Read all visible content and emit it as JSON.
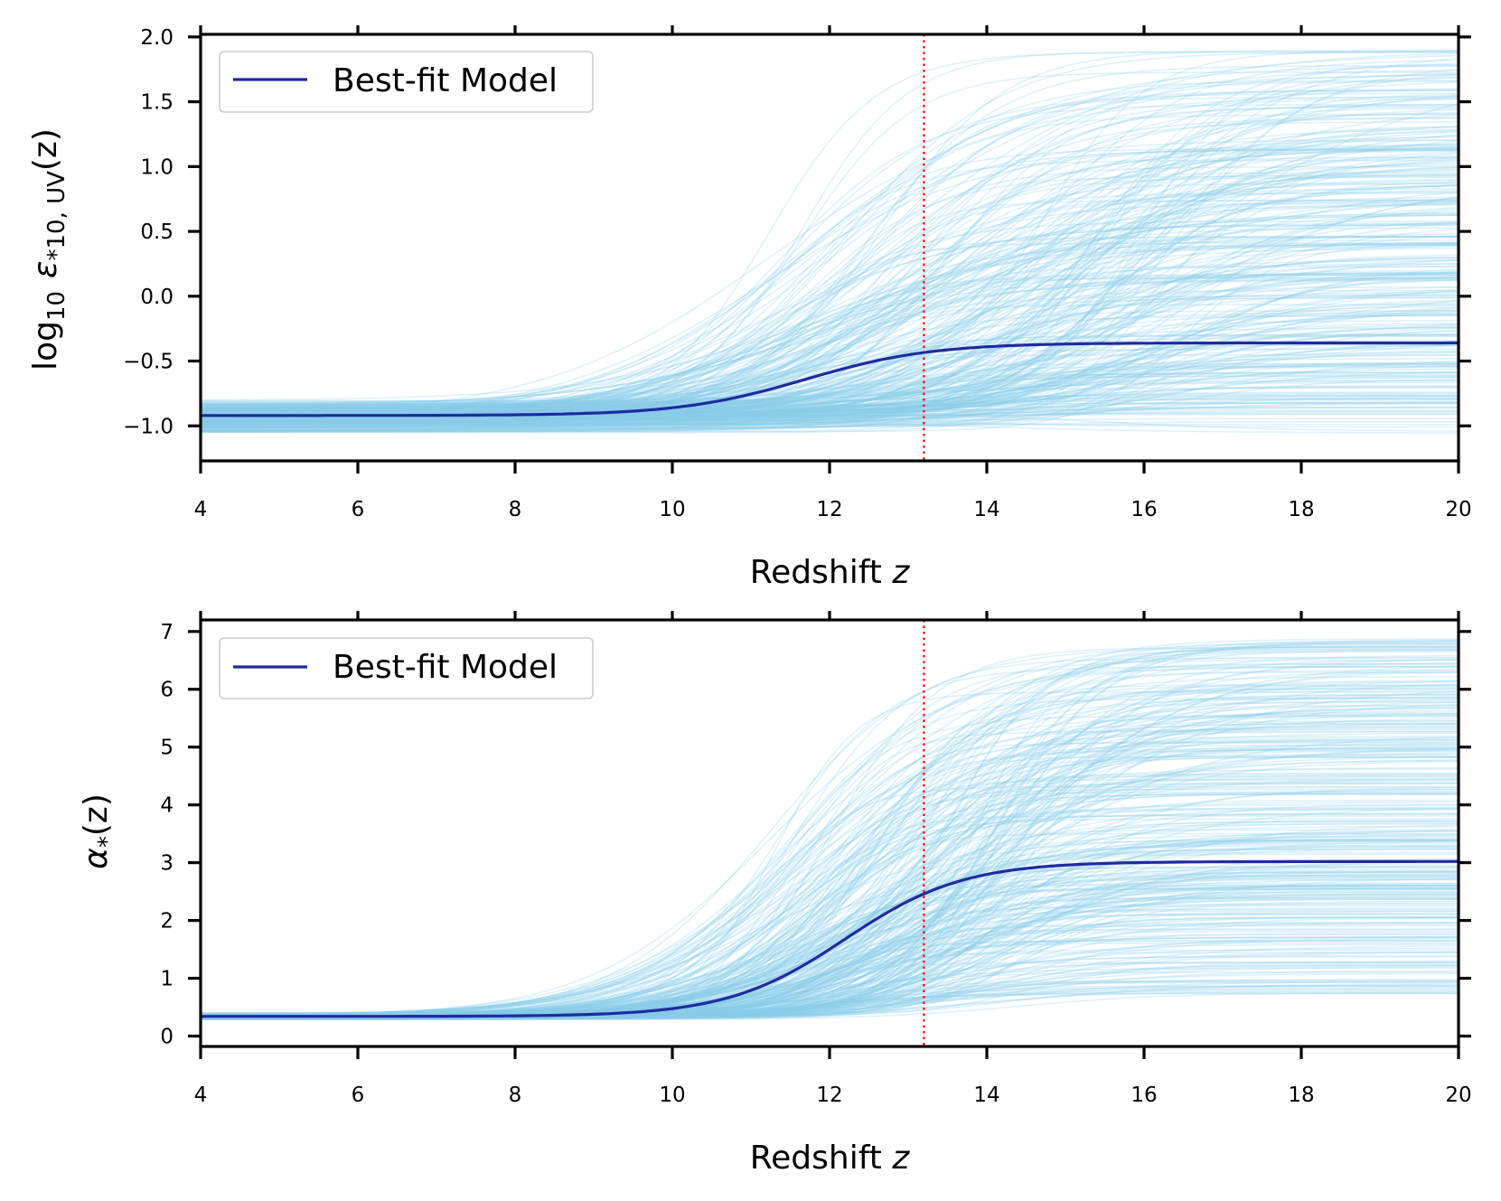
{
  "chart_data": [
    {
      "type": "line",
      "name": "epsilon-panel",
      "xlabel_main": "Redshift ",
      "xlabel_var": "z",
      "ylabel": {
        "log": "log",
        "log_sub": "10",
        "eps": "ε",
        "eps_sub": "*10, UV",
        "arg": "(z)"
      },
      "xlim": [
        4,
        20
      ],
      "ylim": [
        -1.27,
        2.02
      ],
      "xticks": [
        4,
        6,
        8,
        10,
        12,
        14,
        16,
        18,
        20
      ],
      "xtick_labels": [
        "4",
        "6",
        "8",
        "10",
        "12",
        "14",
        "16",
        "18",
        "20"
      ],
      "yticks": [
        -1.0,
        -0.5,
        0.0,
        0.5,
        1.0,
        1.5,
        2.0
      ],
      "ytick_labels": [
        "−1.0",
        "−0.5",
        "0.0",
        "0.5",
        "1.0",
        "1.5",
        "2.0"
      ],
      "vline_z": 13.2,
      "legend": {
        "label": "Best-fit Model",
        "placement": "upper-left"
      },
      "best_fit": {
        "name": "Best-fit Model",
        "low": -0.92,
        "high": -0.36,
        "z0": 11.7,
        "width": 0.8,
        "points": [
          [
            4,
            -0.92
          ],
          [
            8,
            -0.91
          ],
          [
            10,
            -0.8
          ],
          [
            12,
            -0.48
          ],
          [
            13.2,
            -0.39
          ],
          [
            14,
            -0.37
          ],
          [
            16,
            -0.36
          ],
          [
            20,
            -0.36
          ]
        ]
      },
      "samples_summary": {
        "count": 320,
        "low_range": [
          -1.06,
          -0.8
        ],
        "high_range": [
          -1.06,
          1.9
        ],
        "z0_range": [
          11.0,
          16.5
        ],
        "width_range": [
          0.6,
          1.6
        ]
      },
      "colors": {
        "samples": "#87CEEB",
        "best_fit": "#1f2a9f",
        "vline": "#ff0000"
      }
    },
    {
      "type": "line",
      "name": "alpha-panel",
      "xlabel_main": "Redshift ",
      "xlabel_var": "z",
      "ylabel": {
        "alpha": "α",
        "alpha_sub": "*",
        "arg": "(z)"
      },
      "xlim": [
        4,
        20
      ],
      "ylim": [
        -0.18,
        7.2
      ],
      "xticks": [
        4,
        6,
        8,
        10,
        12,
        14,
        16,
        18,
        20
      ],
      "xtick_labels": [
        "4",
        "6",
        "8",
        "10",
        "12",
        "14",
        "16",
        "18",
        "20"
      ],
      "yticks": [
        0,
        1,
        2,
        3,
        4,
        5,
        6,
        7
      ],
      "ytick_labels": [
        "0",
        "1",
        "2",
        "3",
        "4",
        "5",
        "6",
        "7"
      ],
      "vline_z": 13.2,
      "legend": {
        "label": "Best-fit Model",
        "placement": "upper-left"
      },
      "best_fit": {
        "name": "Best-fit Model",
        "low": 0.34,
        "high": 3.02,
        "z0": 12.2,
        "width": 0.75,
        "points": [
          [
            4,
            0.34
          ],
          [
            8,
            0.35
          ],
          [
            10,
            0.45
          ],
          [
            12,
            1.22
          ],
          [
            13.2,
            2.28
          ],
          [
            14,
            2.85
          ],
          [
            16,
            3.01
          ],
          [
            20,
            3.02
          ]
        ]
      },
      "samples_summary": {
        "count": 320,
        "low_range": [
          0.28,
          0.4
        ],
        "high_range": [
          0.72,
          6.88
        ],
        "z0_range": [
          11.2,
          14.5
        ],
        "width_range": [
          0.5,
          1.3
        ]
      },
      "colors": {
        "samples": "#87CEEB",
        "best_fit": "#1f2a9f",
        "vline": "#ff0000"
      }
    }
  ]
}
